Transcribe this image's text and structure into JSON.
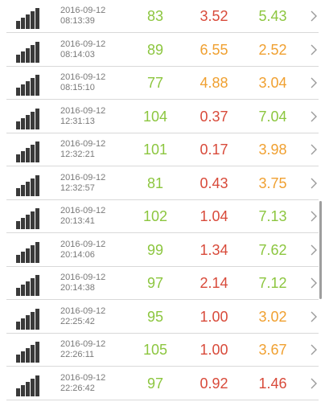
{
  "colors": {
    "green": "#8cc63f",
    "orange": "#f0a030",
    "red": "#d84a3a",
    "meta": "#7a7a7a",
    "signal": "#3a3a3a"
  },
  "icons": {
    "signal": "signal-strength-icon",
    "chevron": "chevron-right-icon"
  },
  "rows": [
    {
      "date": "2016-09-12",
      "time": "08:13:39",
      "ping": "83",
      "ping_color": "green",
      "download": "3.52",
      "download_color": "red",
      "upload": "5.43",
      "upload_color": "green"
    },
    {
      "date": "2016-09-12",
      "time": "08:14:03",
      "ping": "89",
      "ping_color": "green",
      "download": "6.55",
      "download_color": "orange",
      "upload": "2.52",
      "upload_color": "orange"
    },
    {
      "date": "2016-09-12",
      "time": "08:15:10",
      "ping": "77",
      "ping_color": "green",
      "download": "4.88",
      "download_color": "orange",
      "upload": "3.04",
      "upload_color": "orange"
    },
    {
      "date": "2016-09-12",
      "time": "12:31:13",
      "ping": "104",
      "ping_color": "green",
      "download": "0.37",
      "download_color": "red",
      "upload": "7.04",
      "upload_color": "green"
    },
    {
      "date": "2016-09-12",
      "time": "12:32:21",
      "ping": "101",
      "ping_color": "green",
      "download": "0.17",
      "download_color": "red",
      "upload": "3.98",
      "upload_color": "orange"
    },
    {
      "date": "2016-09-12",
      "time": "12:32:57",
      "ping": "81",
      "ping_color": "green",
      "download": "0.43",
      "download_color": "red",
      "upload": "3.75",
      "upload_color": "orange"
    },
    {
      "date": "2016-09-12",
      "time": "20:13:41",
      "ping": "102",
      "ping_color": "green",
      "download": "1.04",
      "download_color": "red",
      "upload": "7.13",
      "upload_color": "green"
    },
    {
      "date": "2016-09-12",
      "time": "20:14:06",
      "ping": "99",
      "ping_color": "green",
      "download": "1.34",
      "download_color": "red",
      "upload": "7.62",
      "upload_color": "green"
    },
    {
      "date": "2016-09-12",
      "time": "20:14:38",
      "ping": "97",
      "ping_color": "green",
      "download": "2.14",
      "download_color": "red",
      "upload": "7.12",
      "upload_color": "green"
    },
    {
      "date": "2016-09-12",
      "time": "22:25:42",
      "ping": "95",
      "ping_color": "green",
      "download": "1.00",
      "download_color": "red",
      "upload": "3.02",
      "upload_color": "orange"
    },
    {
      "date": "2016-09-12",
      "time": "22:26:11",
      "ping": "105",
      "ping_color": "green",
      "download": "1.00",
      "download_color": "red",
      "upload": "3.67",
      "upload_color": "orange"
    },
    {
      "date": "2016-09-12",
      "time": "22:26:42",
      "ping": "97",
      "ping_color": "green",
      "download": "0.92",
      "download_color": "red",
      "upload": "1.46",
      "upload_color": "red"
    }
  ]
}
